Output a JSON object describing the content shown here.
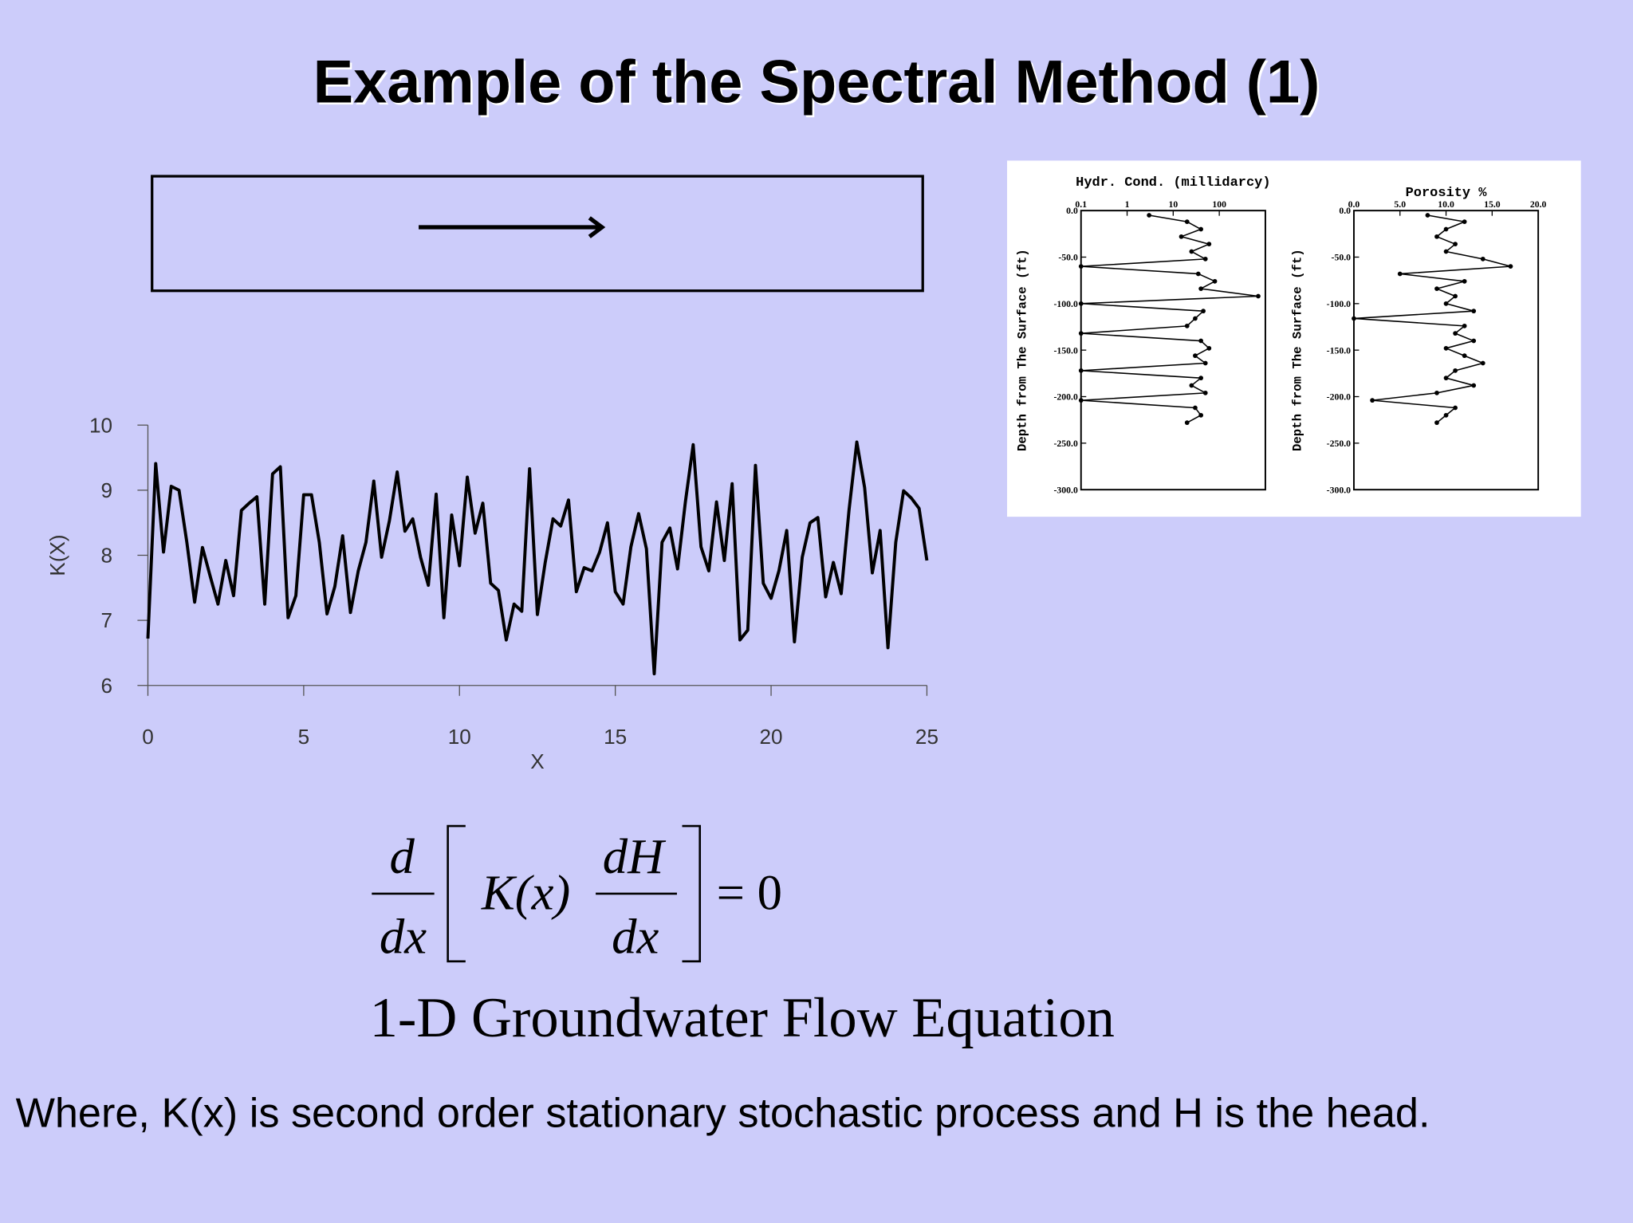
{
  "title": "Example of the Spectral Method (1)",
  "equation": {
    "numerator1": "d",
    "denominator1": "dx",
    "term": "K(x)",
    "numerator2": "dH",
    "denominator2": "dx",
    "rhs": "= 0"
  },
  "caption": "1-D Groundwater Flow Equation",
  "footer": "Where, K(x) is second order stationary stochastic process and H is the head.",
  "chart_data": [
    {
      "type": "line",
      "xlabel": "X",
      "ylabel": "K(X)",
      "color": "#000000",
      "x": [
        0,
        0.25,
        0.5,
        0.75,
        1,
        1.25,
        1.5,
        1.75,
        2,
        2.25,
        2.5,
        2.75,
        3,
        3.25,
        3.5,
        3.75,
        4,
        4.25,
        4.5,
        4.75,
        5,
        5.25,
        5.5,
        5.75,
        6,
        6.25,
        6.5,
        6.75,
        7,
        7.25,
        7.5,
        7.75,
        8,
        8.25,
        8.5,
        8.75,
        9,
        9.25,
        9.5,
        9.75,
        10,
        10.25,
        10.5,
        10.75,
        11,
        11.25,
        11.5,
        11.75,
        12,
        12.25,
        12.5,
        12.75,
        13,
        13.25,
        13.5,
        13.75,
        14,
        14.25,
        14.5,
        14.75,
        15,
        15.25,
        15.5,
        15.75,
        16,
        16.25,
        16.5,
        16.75,
        17,
        17.25,
        17.5,
        17.75,
        18,
        18.25,
        18.5,
        18.75,
        19,
        19.25,
        19.5,
        19.75,
        20,
        20.25,
        20.5,
        20.75,
        21,
        21.25,
        21.5,
        21.75,
        22,
        22.25,
        22.5,
        22.75,
        23,
        23.25,
        23.5,
        23.75,
        24,
        24.25,
        24.5,
        24.75,
        25
      ],
      "y": [
        6.72,
        9.41,
        8.05,
        9.06,
        9.0,
        8.2,
        7.28,
        8.12,
        7.68,
        7.25,
        7.92,
        7.38,
        8.69,
        8.8,
        8.9,
        7.25,
        9.25,
        9.36,
        7.04,
        7.38,
        8.93,
        8.93,
        8.2,
        7.1,
        7.52,
        8.3,
        7.12,
        7.76,
        8.2,
        9.14,
        7.97,
        8.53,
        9.28,
        8.37,
        8.56,
        7.97,
        7.54,
        8.94,
        7.04,
        8.62,
        7.84,
        9.2,
        8.34,
        8.8,
        7.57,
        7.46,
        6.7,
        7.25,
        7.14,
        9.33,
        7.09,
        7.89,
        8.56,
        8.45,
        8.85,
        7.44,
        7.81,
        7.76,
        8.05,
        8.5,
        7.44,
        7.25,
        8.13,
        8.64,
        8.1,
        6.18,
        8.2,
        8.42,
        7.79,
        8.82,
        9.7,
        8.13,
        7.76,
        8.82,
        7.92,
        9.1,
        6.7,
        6.85,
        9.38,
        7.57,
        7.34,
        7.76,
        8.38,
        6.67,
        7.97,
        8.5,
        8.58,
        7.36,
        7.89,
        7.41,
        8.69,
        9.74,
        9.04,
        7.73,
        8.38,
        6.58,
        8.2,
        8.99,
        8.88,
        8.72,
        7.92
      ],
      "xlim": [
        0,
        25
      ],
      "ylim": [
        6,
        10
      ],
      "xticks": [
        0,
        5,
        10,
        15,
        20,
        25
      ],
      "yticks": [
        6,
        7,
        8,
        9,
        10
      ]
    },
    {
      "type": "line",
      "xlabel": "Hydr. Cond. (millidarcy)",
      "ylabel": "Depth from The Surface (ft)",
      "color": "#000000",
      "xscale": "log",
      "frame": true,
      "markers": true,
      "xaxis_position": "top",
      "x": [
        3,
        20,
        40,
        15,
        60,
        25,
        50,
        0.1,
        35,
        80,
        40,
        700,
        0.1,
        45,
        30,
        20,
        0.1,
        40,
        60,
        30,
        50,
        0.1,
        40,
        25,
        50,
        0.1,
        30,
        40,
        20
      ],
      "y": [
        -5,
        -12,
        -20,
        -28,
        -36,
        -44,
        -52,
        -60,
        -68,
        -76,
        -84,
        -92,
        -100,
        -108,
        -116,
        -124,
        -132,
        -140,
        -148,
        -156,
        -164,
        -172,
        -180,
        -188,
        -196,
        -204,
        -212,
        -220,
        -228
      ],
      "xlim": [
        0.1,
        1000
      ],
      "ylim": [
        -300,
        0
      ],
      "xticks": [
        0.1,
        1,
        10,
        100
      ],
      "yticks": [
        {
          "value": 0,
          "label": "0.0"
        },
        {
          "value": -50,
          "label": "-50.0"
        },
        {
          "value": -100,
          "label": "-100.0"
        },
        {
          "value": -150,
          "label": "-150.0"
        },
        {
          "value": -200,
          "label": "-200.0"
        },
        {
          "value": -250,
          "label": "-250.0"
        },
        {
          "value": -300,
          "label": "-300.0"
        }
      ]
    },
    {
      "type": "line",
      "xlabel": "Porosity %",
      "ylabel": "Depth from The Surface (ft)",
      "color": "#000000",
      "frame": true,
      "markers": true,
      "xaxis_position": "top",
      "x": [
        8,
        12,
        10,
        9,
        11,
        10,
        14,
        17,
        5,
        12,
        9,
        11,
        10,
        13,
        0,
        12,
        11,
        13,
        10,
        12,
        14,
        11,
        10,
        13,
        9,
        2,
        11,
        10,
        9
      ],
      "y": [
        -5,
        -12,
        -20,
        -28,
        -36,
        -44,
        -52,
        -60,
        -68,
        -76,
        -84,
        -92,
        -100,
        -108,
        -116,
        -124,
        -132,
        -140,
        -148,
        -156,
        -164,
        -172,
        -180,
        -188,
        -196,
        -204,
        -212,
        -220,
        -228
      ],
      "xlim": [
        0,
        20
      ],
      "ylim": [
        -300,
        0
      ],
      "xticks": [
        {
          "value": 0,
          "label": "0.0"
        },
        {
          "value": 5,
          "label": "5.0"
        },
        {
          "value": 10,
          "label": "10.0"
        },
        {
          "value": 15,
          "label": "15.0"
        },
        {
          "value": 20,
          "label": "20.0"
        }
      ],
      "yticks": [
        {
          "value": 0,
          "label": "0.0"
        },
        {
          "value": -50,
          "label": "-50.0"
        },
        {
          "value": -100,
          "label": "-100.0"
        },
        {
          "value": -150,
          "label": "-150.0"
        },
        {
          "value": -200,
          "label": "-200.0"
        },
        {
          "value": -250,
          "label": "-250.0"
        },
        {
          "value": -300,
          "label": "-300.0"
        }
      ]
    }
  ]
}
